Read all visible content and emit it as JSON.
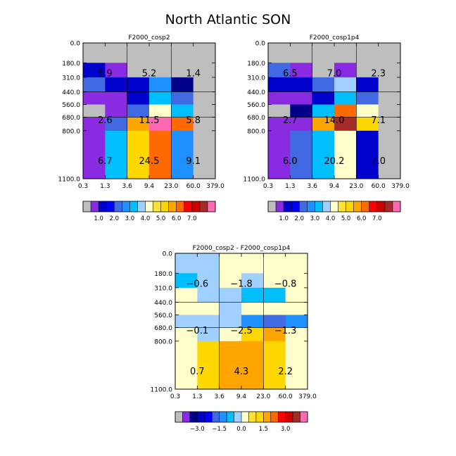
{
  "title": "North Atlantic SON",
  "colors": {
    "base": [
      "#bebebe",
      "#8a2be2",
      "#0000cd",
      "#0000ff",
      "#4169e1",
      "#1e90ff",
      "#00bfff",
      "#a0d0ff",
      "#ffffcc",
      "#ffe135",
      "#ffd700",
      "#ffa500",
      "#ff6a00",
      "#ff0000",
      "#cd0000",
      "#a52a2a",
      "#ff69b4"
    ],
    "diff": [
      "#bebebe",
      "#8a2be2",
      "#00008b",
      "#0000cd",
      "#0000ff",
      "#4169e1",
      "#1e90ff",
      "#00bfff",
      "#a0d0ff",
      "#ffffcc",
      "#ffe135",
      "#ffd700",
      "#ffa500",
      "#ff6a00",
      "#ff0000",
      "#cd0000",
      "#a52a2a",
      "#ff69b4"
    ]
  },
  "chart_data": [
    {
      "type": "heatmap",
      "title": "F2000_cosp2",
      "xticks": [
        "0.3",
        "1.3",
        "3.6",
        "9.4",
        "23.0",
        "60.0",
        "379.0"
      ],
      "yticks": [
        "0.0",
        "180.0",
        "310.0",
        "440.0",
        "560.0",
        "680.0",
        "800.0",
        "1100.0"
      ],
      "cells": [
        [
          "#bebebe",
          "#bebebe",
          "#bebebe",
          "#bebebe",
          "#bebebe",
          "#bebebe"
        ],
        [
          "#0000cd",
          "#8a2be2",
          "#bebebe",
          "#bebebe",
          "#bebebe",
          "#bebebe"
        ],
        [
          "#4169e1",
          "#0000cd",
          "#0000cd",
          "#1e90ff",
          "#00008b",
          "#bebebe"
        ],
        [
          "#8a2be2",
          "#8a2be2",
          "#0000cd",
          "#00bfff",
          "#4169e1",
          "#bebebe"
        ],
        [
          "#bebebe",
          "#8a2be2",
          "#4169e1",
          "#ffffcc",
          "#00bfff",
          "#bebebe"
        ],
        [
          "#8a2be2",
          "#4169e1",
          "#ffa500",
          "#ff69b4",
          "#ff6a00",
          "#bebebe"
        ],
        [
          "#8a2be2",
          "#00bfff",
          "#ffd700",
          "#ff6a00",
          "#1e90ff",
          "#bebebe"
        ]
      ],
      "aggregates": [
        [
          "5.9",
          "5.2",
          "1.4"
        ],
        [
          "2.6",
          "11.5",
          "5.8"
        ],
        [
          "6.7",
          "24.5",
          "9.1"
        ]
      ],
      "colorbar_labels": [
        "1.0",
        "2.0",
        "3.0",
        "4.0",
        "5.0",
        "6.0",
        "7.0"
      ]
    },
    {
      "type": "heatmap",
      "title": "F2000_cosp1p4",
      "xticks": [
        "0.3",
        "1.3",
        "3.6",
        "9.4",
        "23.0",
        "60.0",
        "379.0"
      ],
      "yticks": [
        "0.0",
        "180.0",
        "310.0",
        "440.0",
        "560.0",
        "680.0",
        "800.0",
        "1100.0"
      ],
      "cells": [
        [
          "#bebebe",
          "#bebebe",
          "#bebebe",
          "#bebebe",
          "#bebebe",
          "#bebebe"
        ],
        [
          "#4169e1",
          "#8a2be2",
          "#bebebe",
          "#8a2be2",
          "#bebebe",
          "#bebebe"
        ],
        [
          "#0000cd",
          "#0000cd",
          "#4169e1",
          "#a0d0ff",
          "#0000cd",
          "#bebebe"
        ],
        [
          "#8a2be2",
          "#8a2be2",
          "#0000cd",
          "#00bfff",
          "#4169e1",
          "#bebebe"
        ],
        [
          "#bebebe",
          "#00008b",
          "#00bfff",
          "#ff6a00",
          "#ffffcc",
          "#bebebe"
        ],
        [
          "#8a2be2",
          "#8a2be2",
          "#ffa500",
          "#a52a2a",
          "#ffd700",
          "#bebebe"
        ],
        [
          "#8a2be2",
          "#4169e1",
          "#00bfff",
          "#ffffcc",
          "#0000cd",
          "#bebebe"
        ]
      ],
      "aggregates": [
        [
          "6.5",
          "7.0",
          "2.3"
        ],
        [
          "2.7",
          "14.0",
          "7.1"
        ],
        [
          "6.0",
          "20.2",
          "7.0"
        ]
      ],
      "colorbar_labels": [
        "1.0",
        "2.0",
        "3.0",
        "4.0",
        "5.0",
        "6.0",
        "7.0"
      ]
    },
    {
      "type": "heatmap",
      "title": "F2000_cosp2 - F2000_cosp1p4",
      "xticks": [
        "0.3",
        "1.3",
        "3.6",
        "9.4",
        "23.0",
        "60.0",
        "379.0"
      ],
      "yticks": [
        "0.0",
        "180.0",
        "310.0",
        "440.0",
        "560.0",
        "680.0",
        "800.0",
        "1100.0"
      ],
      "cells": [
        [
          "#a0d0ff",
          "#a0d0ff",
          "#ffffcc",
          "#ffffcc",
          "#ffffcc",
          "#ffffcc"
        ],
        [
          "#00bfff",
          "#a0d0ff",
          "#ffffcc",
          "#a0d0ff",
          "#ffffcc",
          "#ffffcc"
        ],
        [
          "#ffffcc",
          "#a0d0ff",
          "#a0d0ff",
          "#00bfff",
          "#00bfff",
          "#ffffcc"
        ],
        [
          "#ffffcc",
          "#ffffcc",
          "#a0d0ff",
          "#ffffcc",
          "#ffffcc",
          "#ffffcc"
        ],
        [
          "#a0d0ff",
          "#a0d0ff",
          "#a0d0ff",
          "#1e90ff",
          "#4169e1",
          "#1e90ff"
        ],
        [
          "#ffffcc",
          "#a0d0ff",
          "#ffffcc",
          "#ffd700",
          "#ffa500",
          "#ffffcc"
        ],
        [
          "#ffffcc",
          "#ffd700",
          "#ffa500",
          "#ffa500",
          "#ffd700",
          "#ffffcc"
        ]
      ],
      "aggregates": [
        [
          "-0.6",
          "-1.8",
          "-0.8"
        ],
        [
          "-0.1",
          "-2.5",
          "-1.3"
        ],
        [
          "0.7",
          "4.3",
          "2.2"
        ]
      ],
      "colorbar_labels": [
        "-3.0",
        "-1.5",
        "0.0",
        "1.5",
        "3.0"
      ]
    }
  ]
}
